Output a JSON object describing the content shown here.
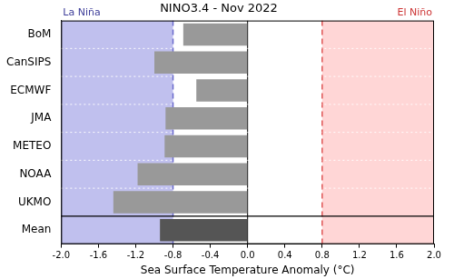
{
  "chart_data": {
    "type": "bar",
    "orientation": "horizontal",
    "title": "NINO3.4 - Nov 2022",
    "x_label": "Sea Surface Temperature Anomaly (°C)",
    "categories": [
      "BoM",
      "CanSIPS",
      "ECMWF",
      "JMA",
      "METEO",
      "NOAA",
      "UKMO",
      "Mean"
    ],
    "values": [
      -0.69,
      -1.0,
      -0.55,
      -0.88,
      -0.89,
      -1.18,
      -1.44,
      -0.94
    ],
    "colors": [
      "#999999",
      "#999999",
      "#999999",
      "#999999",
      "#999999",
      "#999999",
      "#999999",
      "#555555"
    ],
    "xlim": [
      -2.0,
      2.0
    ],
    "xticks": [
      {
        "value": -2.0,
        "label": "-2.0"
      },
      -1.6,
      -1.2,
      -0.8,
      -0.4,
      {
        "value": 0,
        "label": "0.0"
      },
      0.4,
      0.8,
      1.2,
      1.6,
      {
        "value": 2.0,
        "label": "2.0"
      }
    ],
    "regions": [
      {
        "label": "La Niña",
        "range": [
          -2.0,
          -0.8
        ],
        "color": "#c0c0ee"
      },
      {
        "label": "El Niño",
        "range": [
          0.8,
          2.0
        ],
        "color": "#ffd6d6"
      }
    ],
    "grid": true
  }
}
